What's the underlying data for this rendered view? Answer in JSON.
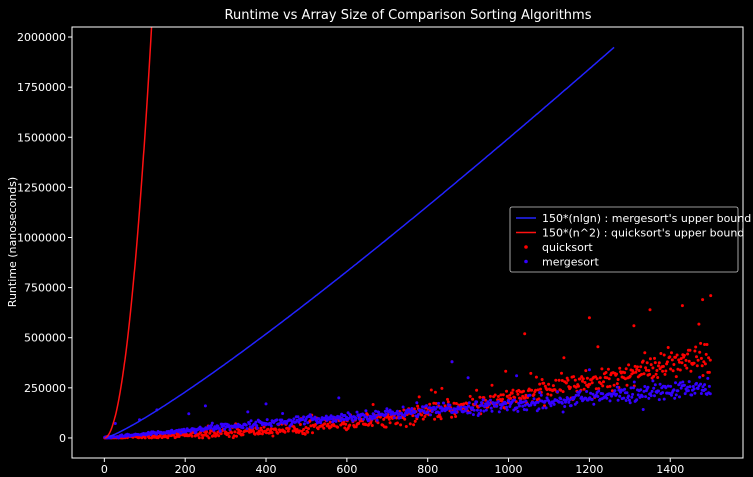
{
  "chart_data": {
    "type": "scatter",
    "title": "Runtime vs Array Size of Comparison Sorting Algorithms",
    "xlabel": "",
    "ylabel": "Runtime (nanoseconds)",
    "xlim": [
      -80,
      1580
    ],
    "ylim": [
      -100000,
      2050000
    ],
    "xticks": [
      0,
      200,
      400,
      600,
      800,
      1000,
      1200,
      1400
    ],
    "yticks": [
      0,
      250000,
      500000,
      750000,
      1000000,
      1250000,
      1500000,
      1750000,
      2000000
    ],
    "grid": false,
    "legend_position": "center-right",
    "colors": {
      "background": "#000000",
      "frame": "#ffffff",
      "mergesort": "#3300ff",
      "quicksort": "#ff0000",
      "nlogn_line": "#2222ff",
      "n2_line": "#ff1111"
    },
    "series": [
      {
        "name": "150*(nlgn) : mergesort's upper bound",
        "kind": "line",
        "formula": "150*n*log2(n)",
        "x_range": [
          1,
          1262
        ]
      },
      {
        "name": "150*(n^2) : quicksort's upper bound",
        "kind": "line",
        "formula": "150*n^2",
        "x_range": [
          1,
          163
        ]
      },
      {
        "name": "quicksort",
        "kind": "scatter",
        "trend": [
          [
            0,
            0
          ],
          [
            200,
            15000
          ],
          [
            400,
            35000
          ],
          [
            600,
            72000
          ],
          [
            800,
            125000
          ],
          [
            1000,
            195000
          ],
          [
            1200,
            285000
          ],
          [
            1400,
            360000
          ],
          [
            1500,
            395000
          ]
        ],
        "x_range": [
          1,
          1500
        ],
        "sample_points": [
          [
            860,
            380000
          ],
          [
            1040,
            520000
          ],
          [
            1200,
            600000
          ],
          [
            1310,
            560000
          ],
          [
            1350,
            640000
          ],
          [
            1430,
            660000
          ],
          [
            1480,
            690000
          ],
          [
            1500,
            710000
          ]
        ]
      },
      {
        "name": "mergesort",
        "kind": "scatter",
        "trend": [
          [
            0,
            0
          ],
          [
            200,
            38000
          ],
          [
            400,
            75000
          ],
          [
            600,
            105000
          ],
          [
            800,
            135000
          ],
          [
            1000,
            165000
          ],
          [
            1200,
            200000
          ],
          [
            1400,
            235000
          ],
          [
            1500,
            250000
          ]
        ],
        "x_range": [
          1,
          1500
        ],
        "sample_points": [
          [
            130,
            140000
          ],
          [
            250,
            160000
          ],
          [
            400,
            170000
          ],
          [
            580,
            200000
          ],
          [
            860,
            380000
          ],
          [
            900,
            300000
          ],
          [
            1020,
            310000
          ],
          [
            1200,
            340000
          ]
        ]
      }
    ]
  }
}
